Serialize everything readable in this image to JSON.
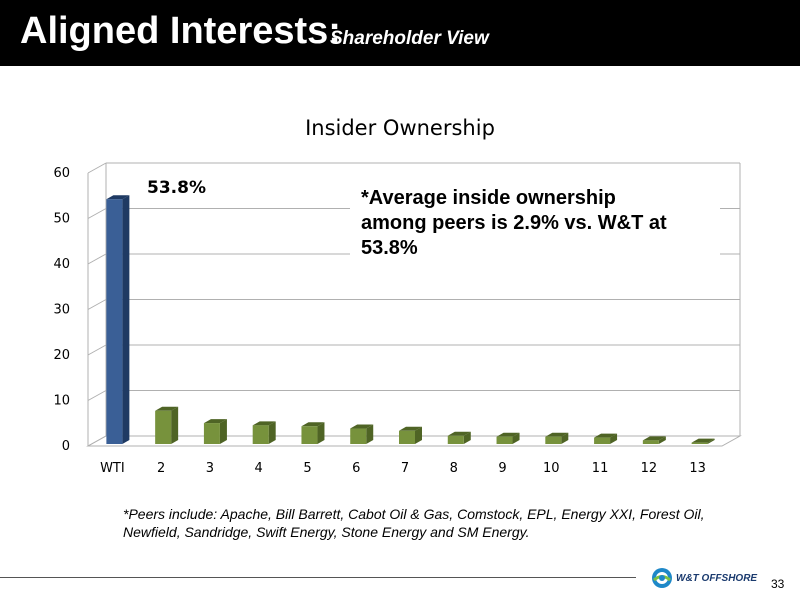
{
  "header": {
    "title": "Aligned Interests:",
    "subtitle": "Shareholder View"
  },
  "chart_data": {
    "type": "bar",
    "title": "Insider Ownership",
    "xlabel": "",
    "ylabel": "",
    "ylim": [
      0,
      60
    ],
    "yticks": [
      "0",
      "10",
      "20",
      "30",
      "40",
      "50",
      "60"
    ],
    "categories": [
      "WTI",
      "2",
      "3",
      "4",
      "5",
      "6",
      "7",
      "8",
      "9",
      "10",
      "11",
      "12",
      "13"
    ],
    "values": [
      53.8,
      7.3,
      4.6,
      4.1,
      3.9,
      3.4,
      2.9,
      1.8,
      1.6,
      1.6,
      1.4,
      0.8,
      0.3
    ],
    "data_label": "53.8%",
    "annotation": "*Average inside ownership among peers is 2.9% vs. W&T at 53.8%",
    "grid": true,
    "colors": {
      "highlight": "#3a5f96",
      "highlight_dark": "#1f3a63",
      "peer": "#77923c",
      "peer_dark": "#4f6425",
      "gridline": "#b0b0b0"
    }
  },
  "footnote": "*Peers include: Apache, Bill Barrett, Cabot Oil & Gas, Comstock, EPL, Energy XXI, Forest Oil, Newfield, Sandridge, Swift Energy, Stone Energy and SM Energy.",
  "logo": {
    "icon": "wt-offshore-logo-icon",
    "text": "W&T OFFSHORE"
  },
  "page_number": "33"
}
